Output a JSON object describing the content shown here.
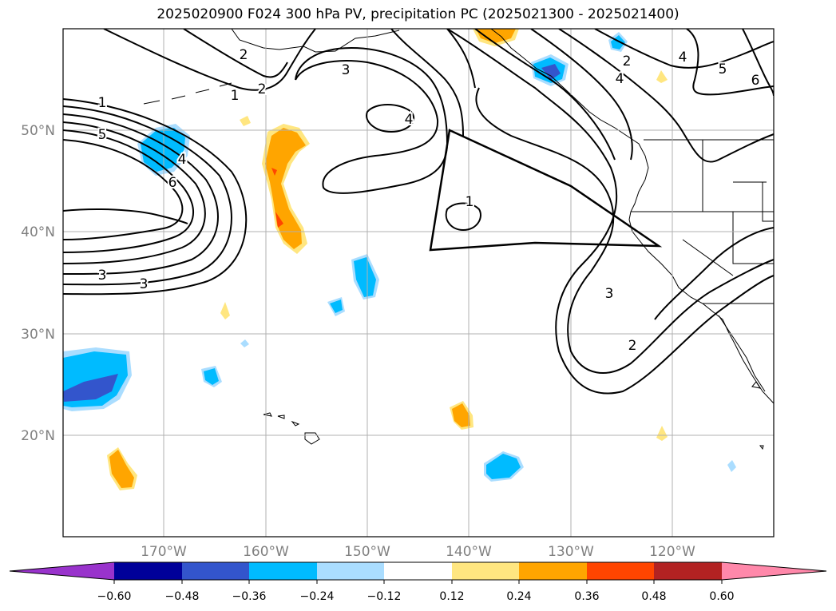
{
  "title": "2025020900 F024 300 hPa PV, precipitation PC (2025021300 - 2025021400)",
  "map": {
    "lon_range": [
      -180,
      -110
    ],
    "lat_range": [
      10,
      60
    ],
    "lat_ticks": [
      "20°N",
      "30°N",
      "40°N",
      "50°N"
    ],
    "lon_ticks": [
      "170°W",
      "160°W",
      "150°W",
      "140°W",
      "130°W",
      "120°W"
    ],
    "tick_color": "#808080",
    "grid": true
  },
  "contours": {
    "labels": [
      "1",
      "2",
      "3",
      "4",
      "5",
      "6",
      "1",
      "2",
      "3",
      "4",
      "3",
      "4",
      "4",
      "5",
      "6",
      "1",
      "2",
      "3",
      "2"
    ]
  },
  "colorbar": {
    "ticks": [
      "−0.60",
      "−0.48",
      "−0.36",
      "−0.24",
      "−0.12",
      "0.12",
      "0.24",
      "0.36",
      "0.48",
      "0.60"
    ],
    "colors": [
      "#9933cc",
      "#000099",
      "#3355cc",
      "#00bbff",
      "#aaddff",
      "#ffffff",
      "#ffe680",
      "#ffa500",
      "#ff4500",
      "#b22222",
      "#ff88aa"
    ]
  }
}
